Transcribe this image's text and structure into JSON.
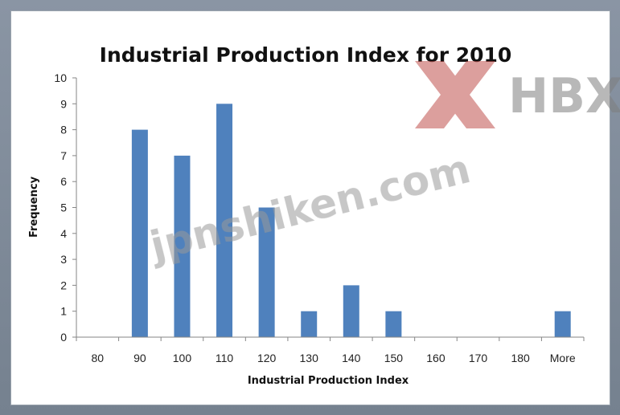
{
  "chart_data": {
    "type": "bar",
    "title": "Industrial Production Index for 2010",
    "xlabel": "Industrial Production Index",
    "ylabel": "Frequency",
    "categories": [
      "80",
      "90",
      "100",
      "110",
      "120",
      "130",
      "140",
      "150",
      "160",
      "170",
      "180",
      "More"
    ],
    "values": [
      0,
      8,
      7,
      9,
      5,
      1,
      2,
      1,
      0,
      0,
      0,
      1
    ],
    "ylim": [
      0,
      10
    ],
    "yticks": [
      "0",
      "1",
      "2",
      "3",
      "4",
      "5",
      "6",
      "7",
      "8",
      "9",
      "10"
    ],
    "grid": false,
    "legend": "none",
    "bar_color": "#4f81bd"
  },
  "watermark": {
    "logo_letter": "X",
    "logo_text": "HBX",
    "site_text": "jpnshiken.com",
    "logo_color": "#c0504d",
    "text_color": "#8a8a8a"
  }
}
